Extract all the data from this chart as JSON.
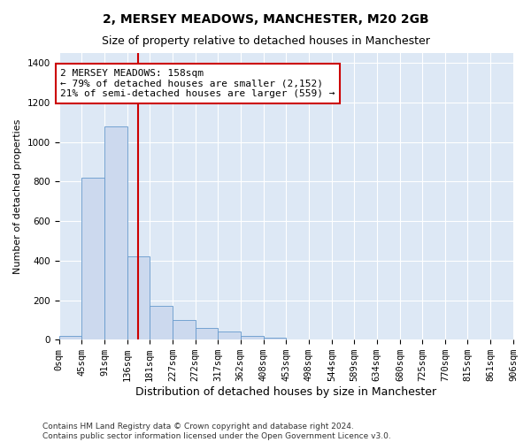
{
  "title": "2, MERSEY MEADOWS, MANCHESTER, M20 2GB",
  "subtitle": "Size of property relative to detached houses in Manchester",
  "xlabel": "Distribution of detached houses by size in Manchester",
  "ylabel": "Number of detached properties",
  "bin_labels": [
    "0sqm",
    "45sqm",
    "91sqm",
    "136sqm",
    "181sqm",
    "227sqm",
    "272sqm",
    "317sqm",
    "362sqm",
    "408sqm",
    "453sqm",
    "498sqm",
    "544sqm",
    "589sqm",
    "634sqm",
    "680sqm",
    "725sqm",
    "770sqm",
    "815sqm",
    "861sqm",
    "906sqm"
  ],
  "bin_edges": [
    0,
    45,
    91,
    136,
    181,
    227,
    272,
    317,
    362,
    408,
    453,
    498,
    544,
    589,
    634,
    680,
    725,
    770,
    815,
    861,
    906
  ],
  "bar_heights": [
    20,
    820,
    1080,
    420,
    170,
    100,
    60,
    40,
    20,
    10,
    0,
    0,
    0,
    0,
    0,
    0,
    0,
    0,
    0,
    0
  ],
  "bar_color": "#ccd9ee",
  "bar_edge_color": "#6699cc",
  "vline_x": 158,
  "vline_color": "#cc0000",
  "annotation_text": "2 MERSEY MEADOWS: 158sqm\n← 79% of detached houses are smaller (2,152)\n21% of semi-detached houses are larger (559) →",
  "annotation_box_color": "#ffffff",
  "annotation_box_edge": "#cc0000",
  "ylim": [
    0,
    1450
  ],
  "yticks": [
    0,
    200,
    400,
    600,
    800,
    1000,
    1200,
    1400
  ],
  "plot_bg": "#dde8f5",
  "fig_bg": "#ffffff",
  "grid_color": "#ffffff",
  "footer": "Contains HM Land Registry data © Crown copyright and database right 2024.\nContains public sector information licensed under the Open Government Licence v3.0.",
  "title_fontsize": 10,
  "subtitle_fontsize": 9,
  "xlabel_fontsize": 9,
  "ylabel_fontsize": 8,
  "tick_fontsize": 7.5,
  "annotation_fontsize": 8,
  "footer_fontsize": 6.5
}
